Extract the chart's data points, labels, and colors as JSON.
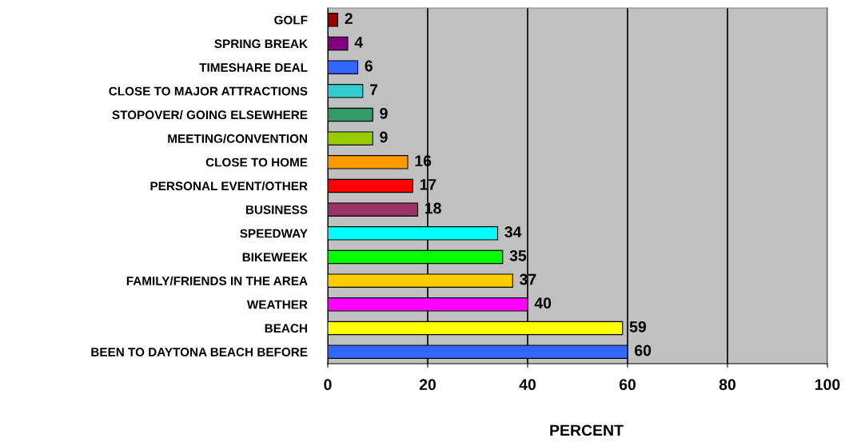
{
  "chart_data": {
    "type": "bar",
    "orientation": "horizontal",
    "xlabel": "PERCENT",
    "categories": [
      "GOLF",
      "SPRING BREAK",
      "TIMESHARE DEAL",
      "CLOSE TO MAJOR ATTRACTIONS",
      "STOPOVER/ GOING ELSEWHERE",
      "MEETING/CONVENTION",
      "CLOSE TO HOME",
      "PERSONAL EVENT/OTHER",
      "BUSINESS",
      "SPEEDWAY",
      "BIKEWEEK",
      "FAMILY/FRIENDS IN THE AREA",
      "WEATHER",
      "BEACH",
      "BEEN TO DAYTONA BEACH BEFORE"
    ],
    "values": [
      2,
      4,
      6,
      7,
      9,
      9,
      16,
      17,
      18,
      34,
      35,
      37,
      40,
      59,
      60
    ],
    "colors": [
      "#990000",
      "#800080",
      "#3366ff",
      "#33cccc",
      "#339966",
      "#99cc00",
      "#ff9900",
      "#ff0000",
      "#993366",
      "#00ffff",
      "#00ff00",
      "#ffcc00",
      "#ff00ff",
      "#ffff00",
      "#3366ff"
    ],
    "xlim": [
      0,
      100
    ],
    "xticks": [
      0,
      20,
      40,
      60,
      80,
      100
    ],
    "grid": "x",
    "data_labels": true
  }
}
